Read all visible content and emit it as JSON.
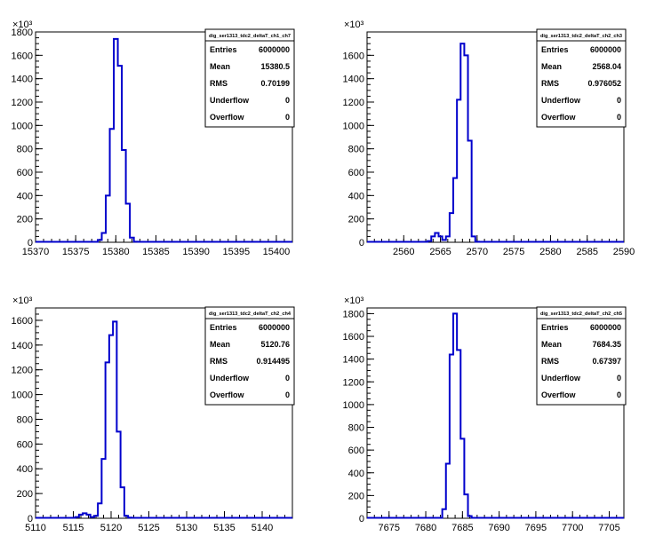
{
  "chart_data": [
    {
      "type": "bar",
      "histogram": true,
      "title": "",
      "xlabel": "",
      "ylabel": "",
      "y_exponent": "×10³",
      "xlim": [
        15370,
        15402
      ],
      "ylim": [
        0,
        1800
      ],
      "xticks": [
        15370,
        15375,
        15380,
        15385,
        15390,
        15395,
        15400
      ],
      "yticks": [
        0,
        200,
        400,
        600,
        800,
        1000,
        1200,
        1400,
        1600,
        1800
      ],
      "series": [
        {
          "x": [
            15378.0,
            15378.5,
            15379.0,
            15379.5,
            15380.0,
            15380.5,
            15381.0,
            15381.5,
            15382.0,
            15382.5
          ],
          "values": [
            20,
            80,
            400,
            970,
            1740,
            1510,
            790,
            330,
            40,
            5
          ]
        }
      ],
      "stats": {
        "name": "dig_ser1313_tdc2_deltaT_ch1_ch7",
        "rows": [
          {
            "label": "Entries",
            "value": "6000000"
          },
          {
            "label": "Mean",
            "value": "15380.5"
          },
          {
            "label": "RMS",
            "value": "0.70199"
          },
          {
            "label": "Underflow",
            "value": "0"
          },
          {
            "label": "Overflow",
            "value": "0"
          }
        ]
      }
    },
    {
      "type": "bar",
      "histogram": true,
      "title": "",
      "xlabel": "",
      "ylabel": "",
      "y_exponent": "×10³",
      "xlim": [
        2555,
        2590
      ],
      "ylim": [
        0,
        1800
      ],
      "xticks": [
        2560,
        2565,
        2570,
        2575,
        2580,
        2585,
        2590
      ],
      "yticks": [
        0,
        200,
        400,
        600,
        800,
        1000,
        1200,
        1400,
        1600
      ],
      "series": [
        {
          "x": [
            2563.5,
            2564.0,
            2564.5,
            2565.0,
            2565.5,
            2566.0,
            2566.5,
            2567.0,
            2567.5,
            2568.0,
            2568.5,
            2569.0,
            2569.5,
            2570.0
          ],
          "values": [
            10,
            50,
            80,
            50,
            20,
            50,
            250,
            550,
            1220,
            1700,
            1600,
            870,
            50,
            5
          ]
        }
      ],
      "stats": {
        "name": "dig_ser1313_tdc2_deltaT_ch2_ch3",
        "rows": [
          {
            "label": "Entries",
            "value": "6000000"
          },
          {
            "label": "Mean",
            "value": "2568.04"
          },
          {
            "label": "RMS",
            "value": "0.976052"
          },
          {
            "label": "Underflow",
            "value": "0"
          },
          {
            "label": "Overflow",
            "value": "0"
          }
        ]
      }
    },
    {
      "type": "bar",
      "histogram": true,
      "title": "",
      "xlabel": "",
      "ylabel": "",
      "y_exponent": "×10³",
      "xlim": [
        5110,
        5144
      ],
      "ylim": [
        0,
        1700
      ],
      "xticks": [
        5110,
        5115,
        5120,
        5125,
        5130,
        5135,
        5140
      ],
      "yticks": [
        0,
        200,
        400,
        600,
        800,
        1000,
        1200,
        1400,
        1600
      ],
      "series": [
        {
          "x": [
            5115.5,
            5116.0,
            5116.5,
            5117.0,
            5117.5,
            5118.0,
            5118.5,
            5119.0,
            5119.5,
            5120.0,
            5120.5,
            5121.0,
            5121.5,
            5122.0,
            5122.5
          ],
          "values": [
            10,
            30,
            40,
            30,
            10,
            20,
            120,
            480,
            1260,
            1480,
            1590,
            700,
            250,
            20,
            5
          ]
        }
      ],
      "stats": {
        "name": "dig_ser1313_tdc2_deltaT_ch2_ch4",
        "rows": [
          {
            "label": "Entries",
            "value": "6000000"
          },
          {
            "label": "Mean",
            "value": "5120.76"
          },
          {
            "label": "RMS",
            "value": "0.914495"
          },
          {
            "label": "Underflow",
            "value": "0"
          },
          {
            "label": "Overflow",
            "value": "0"
          }
        ]
      }
    },
    {
      "type": "bar",
      "histogram": true,
      "title": "",
      "xlabel": "",
      "ylabel": "",
      "y_exponent": "×10³",
      "xlim": [
        7672,
        7707
      ],
      "ylim": [
        0,
        1850
      ],
      "xticks": [
        7675,
        7680,
        7685,
        7690,
        7695,
        7700,
        7705
      ],
      "yticks": [
        0,
        200,
        400,
        600,
        800,
        1000,
        1200,
        1400,
        1600,
        1800
      ],
      "series": [
        {
          "x": [
            7682.5,
            7683.0,
            7683.5,
            7684.0,
            7684.5,
            7685.0,
            7685.5,
            7686.0
          ],
          "values": [
            80,
            480,
            1440,
            1800,
            1480,
            700,
            210,
            20
          ]
        }
      ],
      "stats": {
        "name": "dig_ser1313_tdc2_deltaT_ch2_ch5",
        "rows": [
          {
            "label": "Entries",
            "value": "6000000"
          },
          {
            "label": "Mean",
            "value": "7684.35"
          },
          {
            "label": "RMS",
            "value": "0.67397"
          },
          {
            "label": "Underflow",
            "value": "0"
          },
          {
            "label": "Overflow",
            "value": "0"
          }
        ]
      }
    }
  ]
}
